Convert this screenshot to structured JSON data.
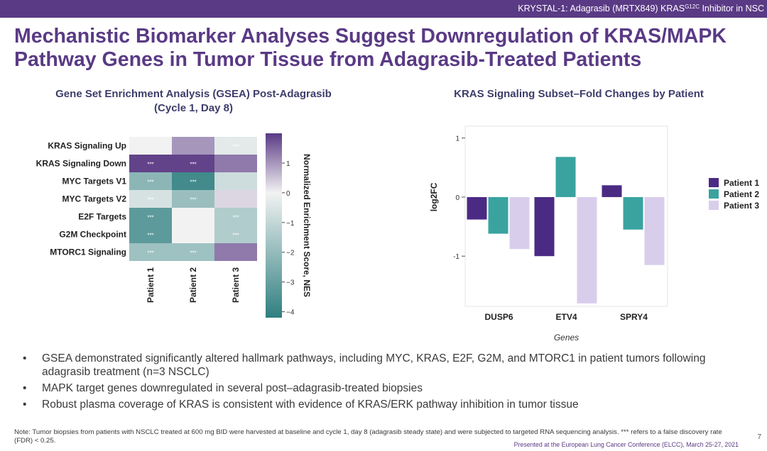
{
  "header": {
    "running_title_prefix": "KRYSTAL-1: Adagrasib (MRTX849) KRAS",
    "running_title_sup": "G12C",
    "running_title_suffix": " Inhibitor in NSC"
  },
  "slide": {
    "title": "Mechanistic Biomarker Analyses Suggest Downregulation of KRAS/MAPK Pathway Genes in Tumor Tissue from Adagrasib-Treated Patients",
    "bullets": [
      "GSEA demonstrated significantly altered hallmark pathways, including MYC, KRAS, E2F, G2M, and MTORC1 in patient tumors following adagrasib treatment (n=3 NSCLC)",
      "MAPK target genes downregulated in several post–adagrasib-treated biopsies",
      "Robust plasma coverage of KRAS is consistent with evidence of KRAS/ERK pathway inhibition in tumor tissue"
    ],
    "note": "Note: Tumor biopsies from patients with NSCLC treated at 600 mg BID were harvested at baseline and cycle 1, day 8 (adagrasib steady state) and were subjected to targeted RNA sequencing analysis. *** refers to a false discovery rate (FDR) < 0.25.",
    "footer": "Presented at the European Lung Cancer Conference (ELCC), March 25-27, 2021",
    "page_number": "7"
  },
  "chart_data": [
    {
      "type": "heatmap",
      "title_line1": "Gene Set Enrichment Analysis (GSEA) Post-Adagrasib",
      "title_line2": "(Cycle 1, Day 8)",
      "rows": [
        "KRAS Signaling Up",
        "KRAS Signaling Down",
        "MYC Targets V1",
        "MYC Targets V2",
        "E2F Targets",
        "G2M Checkpoint",
        "MTORC1 Signaling"
      ],
      "columns": [
        "Patient 1",
        "Patient 2",
        "Patient 3"
      ],
      "values": [
        [
          0.0,
          1.0,
          -0.3
        ],
        [
          1.9,
          1.9,
          1.3
        ],
        [
          -2.2,
          -3.8,
          -0.8
        ],
        [
          -0.6,
          -1.9,
          0.3
        ],
        [
          -3.2,
          0.0,
          -1.4
        ],
        [
          -3.2,
          0.0,
          -1.4
        ],
        [
          -1.8,
          -1.8,
          1.3
        ]
      ],
      "significance": [
        [
          false,
          false,
          true
        ],
        [
          true,
          true,
          false
        ],
        [
          true,
          true,
          false
        ],
        [
          true,
          true,
          false
        ],
        [
          true,
          false,
          true
        ],
        [
          true,
          false,
          true
        ],
        [
          true,
          true,
          false
        ]
      ],
      "significance_marker": "***",
      "colorbar": {
        "label": "Normalized Enrichment Score, NES",
        "ticks": [
          "1",
          "0",
          "−1",
          "−2",
          "−3",
          "−4"
        ],
        "range": [
          -4.2,
          2.0
        ],
        "colors": {
          "high": "#5a3a85",
          "mid": "#f2f2f2",
          "low": "#2f7f80"
        }
      }
    },
    {
      "type": "bar",
      "title": "KRAS Signaling Subset–Fold Changes by Patient",
      "xlabel": "Genes",
      "ylabel": "log2FC",
      "categories": [
        "DUSP6",
        "ETV4",
        "SPRY4"
      ],
      "yticks": [
        "1",
        "0",
        "-1"
      ],
      "ylim": [
        -1.85,
        1.2
      ],
      "series": [
        {
          "name": "Patient 1",
          "color": "#4b2a84",
          "values": [
            -0.38,
            -1.0,
            0.2
          ]
        },
        {
          "name": "Patient 2",
          "color": "#3aa3a0",
          "values": [
            -0.62,
            0.68,
            -0.55
          ]
        },
        {
          "name": "Patient 3",
          "color": "#d9cdec",
          "values": [
            -0.88,
            -1.8,
            -1.15
          ]
        }
      ],
      "legend_position": "right"
    }
  ]
}
